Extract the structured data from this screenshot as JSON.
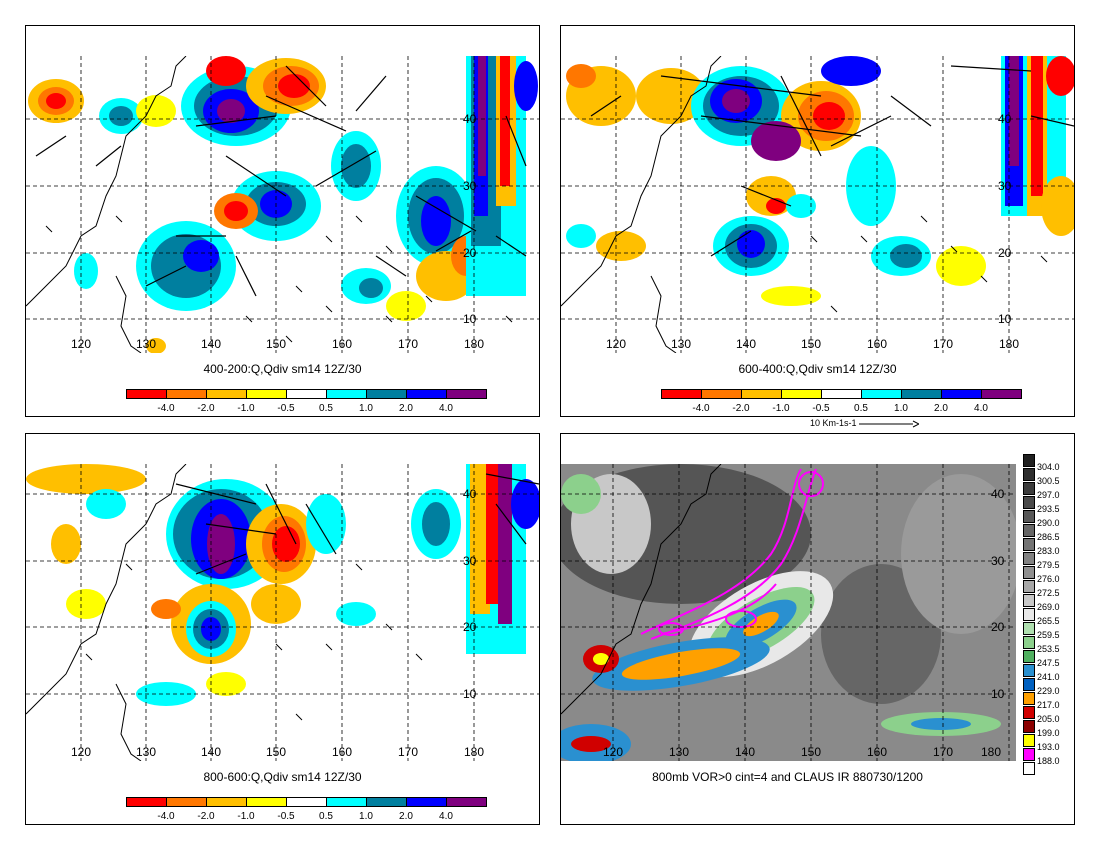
{
  "panels": [
    {
      "id": "p1",
      "caption": "400-200:Q,Qdiv sm14 12Z/30",
      "lon_labels": [
        "120",
        "130",
        "140",
        "150",
        "160",
        "170",
        "180"
      ],
      "lat_labels": [
        "10",
        "20",
        "30",
        "40"
      ]
    },
    {
      "id": "p2",
      "caption": "600-400:Q,Qdiv sm14 12Z/30",
      "lon_labels": [
        "120",
        "130",
        "140",
        "150",
        "160",
        "170",
        "180"
      ],
      "lat_labels": [
        "10",
        "20",
        "30",
        "40"
      ]
    },
    {
      "id": "p3",
      "caption": "800-600:Q,Qdiv sm14 12Z/30",
      "lon_labels": [
        "120",
        "130",
        "140",
        "150",
        "160",
        "170",
        "180"
      ],
      "lat_labels": [
        "10",
        "20",
        "30",
        "40"
      ]
    },
    {
      "id": "p4",
      "caption": "800mb VOR>0 cint=4 and CLAUS IR 880730/1200",
      "lon_labels": [
        "120",
        "130",
        "140",
        "150",
        "160",
        "170",
        "180"
      ],
      "lat_labels": [
        "10",
        "20",
        "30",
        "40"
      ]
    }
  ],
  "qdiv_colorbar": {
    "colors": [
      "#ff0000",
      "#ff7700",
      "#ffbf00",
      "#ffff00",
      "#ffffff",
      "#00ffff",
      "#007f9f",
      "#0000ff",
      "#7f007f"
    ],
    "labels": [
      "-4.0",
      "-2.0",
      "-1.0",
      "-0.5",
      "0.5",
      "1.0",
      "2.0",
      "4.0"
    ]
  },
  "reference_vector": "10 Km-1s-1",
  "ir_legend": {
    "labels": [
      "304.0",
      "300.5",
      "297.0",
      "293.5",
      "290.0",
      "286.5",
      "283.0",
      "279.5",
      "276.0",
      "272.5",
      "269.0",
      "265.5",
      "259.5",
      "253.5",
      "247.5",
      "241.0",
      "229.0",
      "217.0",
      "205.0",
      "199.0",
      "193.0",
      "188.0"
    ],
    "colors": [
      "#202020",
      "#2e2e2e",
      "#3c3c3c",
      "#4a4a4a",
      "#585858",
      "#666666",
      "#747474",
      "#828282",
      "#909090",
      "#a8a8a8",
      "#c8c8c8",
      "#e8e8e8",
      "#b0e0b0",
      "#8cd08c",
      "#50b060",
      "#2a90d0",
      "#0060c0",
      "#ffa000",
      "#d00000",
      "#8b0000",
      "#ffff00",
      "#ff00ff"
    ],
    "bottom_color": "#ffffff"
  }
}
